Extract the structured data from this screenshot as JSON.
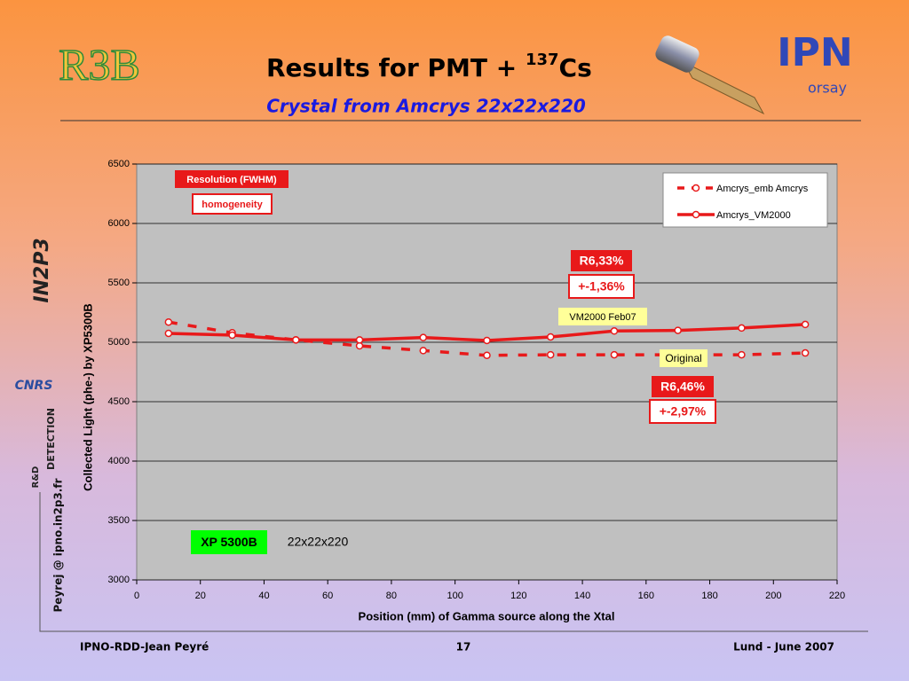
{
  "slide": {
    "title": "Results for PMT + ",
    "title_sup": "137",
    "title_end": "Cs",
    "subtitle": "Crystal from Amcrys 22x22x220",
    "footer_left": "IPNO-RDD-Jean Peyré",
    "footer_page": "17",
    "footer_right": "Lund - June 2007",
    "side_text": "Peyrej @ ipno.in2p3.fr",
    "logos": [
      "R3B",
      "IPN",
      "orsay",
      "IN2P3",
      "CNRS",
      "DETECTION",
      "R&D"
    ]
  },
  "chart_data": {
    "type": "line",
    "xlabel": "Position (mm) of Gamma source along the Xtal",
    "ylabel": "Collected Light (phe-) by XP5300B",
    "xlim": [
      0,
      220
    ],
    "xticks": [
      0,
      20,
      40,
      60,
      80,
      100,
      120,
      140,
      160,
      180,
      200,
      220
    ],
    "ylim": [
      3000,
      6500
    ],
    "yticks": [
      3000,
      3500,
      4000,
      4500,
      5000,
      5500,
      6000,
      6500
    ],
    "grid": true,
    "legend": "top-right",
    "series": [
      {
        "name": "Amcrys_emb Amcrys",
        "color": "#e8191a",
        "dash": true,
        "x": [
          10,
          30,
          50,
          70,
          90,
          110,
          130,
          150,
          190,
          210
        ],
        "values": [
          5170,
          5080,
          5020,
          4970,
          4930,
          4890,
          4895,
          4895,
          4895,
          4910
        ]
      },
      {
        "name": "Amcrys_VM2000",
        "color": "#e8191a",
        "dash": false,
        "x": [
          10,
          30,
          50,
          70,
          90,
          110,
          130,
          150,
          170,
          190,
          210
        ],
        "values": [
          5075,
          5060,
          5020,
          5020,
          5040,
          5015,
          5045,
          5095,
          5100,
          5120,
          5150
        ]
      }
    ],
    "annotations": [
      "Resolution (FWHM)",
      "homogeneity",
      "R6,33%",
      "+-1,36%",
      "VM2000 Feb07",
      "Original",
      "R6,46%",
      "+-2,97%",
      "XP 5300B",
      "22x22x220"
    ]
  }
}
